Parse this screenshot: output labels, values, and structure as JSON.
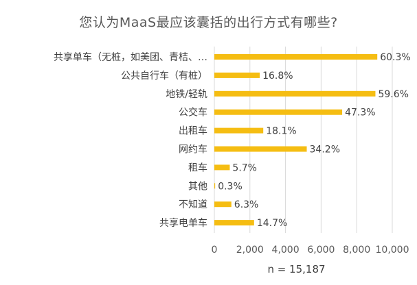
{
  "chart_data": {
    "type": "bar",
    "orientation": "horizontal",
    "title": "您认为MaaS最应该囊括的出行方式有哪些?",
    "categories": [
      "共享单车（无桩，如美团、青桔、…",
      "公共自行车（有桩）",
      "地铁/轻轨",
      "公交车",
      "出租车",
      "网约车",
      "租车",
      "其他",
      "不知道",
      "共享电单车"
    ],
    "values": [
      9158,
      2551,
      9052,
      7184,
      2749,
      5194,
      866,
      46,
      957,
      2233
    ],
    "data_labels": [
      "60.3%",
      "16.8%",
      "59.6%",
      "47.3%",
      "18.1%",
      "34.2%",
      "5.7%",
      "0.3%",
      "6.3%",
      "14.7%"
    ],
    "xlim": [
      0,
      10000
    ],
    "xticks": [
      0,
      2000,
      4000,
      6000,
      8000,
      10000
    ],
    "xtick_labels": [
      "0",
      "2,000",
      "4,000",
      "6,000",
      "8,000",
      "10,000"
    ],
    "grid": true,
    "bar_color": "#F5BD12",
    "grid_color": "#D9D9D9",
    "note": "n = 15,187"
  }
}
